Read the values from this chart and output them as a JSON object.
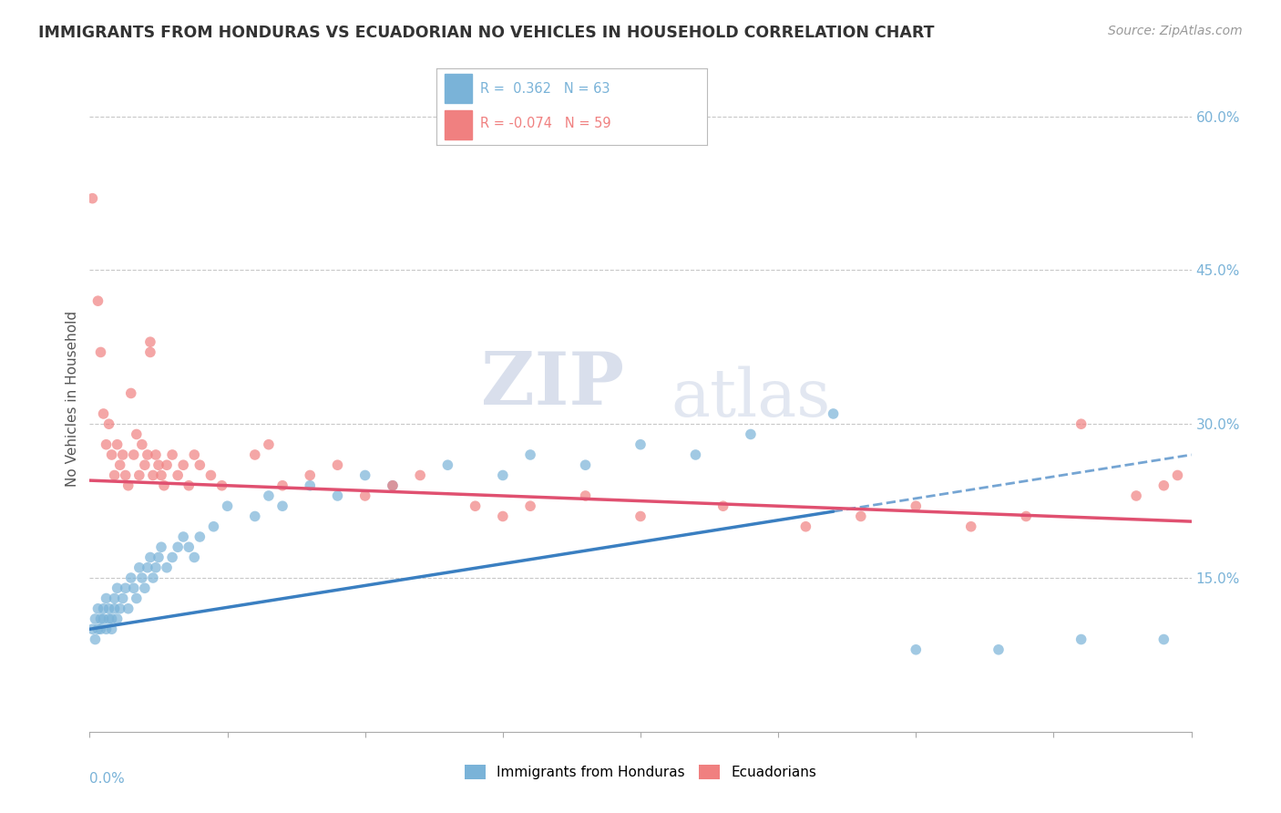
{
  "title": "IMMIGRANTS FROM HONDURAS VS ECUADORIAN NO VEHICLES IN HOUSEHOLD CORRELATION CHART",
  "source": "Source: ZipAtlas.com",
  "ylabel_label": "No Vehicles in Household",
  "x_min": 0.0,
  "x_max": 0.4,
  "y_min": 0.0,
  "y_max": 0.65,
  "y_ticks": [
    0.15,
    0.3,
    0.45,
    0.6
  ],
  "y_tick_labels": [
    "15.0%",
    "30.0%",
    "45.0%",
    "60.0%"
  ],
  "r_blue": 0.362,
  "n_blue": 63,
  "r_pink": -0.074,
  "n_pink": 59,
  "blue_color": "#7ab3d8",
  "pink_color": "#f08080",
  "trend_blue": "#3a7fc1",
  "trend_pink": "#e05070",
  "blue_label": "Immigrants from Honduras",
  "pink_label": "Ecuadorians",
  "watermark_zip": "ZIP",
  "watermark_atlas": "atlas",
  "background_color": "#ffffff",
  "grid_color": "#c8c8c8",
  "title_color": "#333333",
  "blue_scatter": [
    [
      0.001,
      0.1
    ],
    [
      0.002,
      0.11
    ],
    [
      0.002,
      0.09
    ],
    [
      0.003,
      0.1
    ],
    [
      0.003,
      0.12
    ],
    [
      0.004,
      0.11
    ],
    [
      0.004,
      0.1
    ],
    [
      0.005,
      0.11
    ],
    [
      0.005,
      0.12
    ],
    [
      0.006,
      0.1
    ],
    [
      0.006,
      0.13
    ],
    [
      0.007,
      0.11
    ],
    [
      0.007,
      0.12
    ],
    [
      0.008,
      0.1
    ],
    [
      0.008,
      0.11
    ],
    [
      0.009,
      0.12
    ],
    [
      0.009,
      0.13
    ],
    [
      0.01,
      0.11
    ],
    [
      0.01,
      0.14
    ],
    [
      0.011,
      0.12
    ],
    [
      0.012,
      0.13
    ],
    [
      0.013,
      0.14
    ],
    [
      0.014,
      0.12
    ],
    [
      0.015,
      0.15
    ],
    [
      0.016,
      0.14
    ],
    [
      0.017,
      0.13
    ],
    [
      0.018,
      0.16
    ],
    [
      0.019,
      0.15
    ],
    [
      0.02,
      0.14
    ],
    [
      0.021,
      0.16
    ],
    [
      0.022,
      0.17
    ],
    [
      0.023,
      0.15
    ],
    [
      0.024,
      0.16
    ],
    [
      0.025,
      0.17
    ],
    [
      0.026,
      0.18
    ],
    [
      0.028,
      0.16
    ],
    [
      0.03,
      0.17
    ],
    [
      0.032,
      0.18
    ],
    [
      0.034,
      0.19
    ],
    [
      0.036,
      0.18
    ],
    [
      0.038,
      0.17
    ],
    [
      0.04,
      0.19
    ],
    [
      0.045,
      0.2
    ],
    [
      0.05,
      0.22
    ],
    [
      0.06,
      0.21
    ],
    [
      0.065,
      0.23
    ],
    [
      0.07,
      0.22
    ],
    [
      0.08,
      0.24
    ],
    [
      0.09,
      0.23
    ],
    [
      0.1,
      0.25
    ],
    [
      0.11,
      0.24
    ],
    [
      0.13,
      0.26
    ],
    [
      0.15,
      0.25
    ],
    [
      0.16,
      0.27
    ],
    [
      0.18,
      0.26
    ],
    [
      0.2,
      0.28
    ],
    [
      0.22,
      0.27
    ],
    [
      0.24,
      0.29
    ],
    [
      0.27,
      0.31
    ],
    [
      0.3,
      0.08
    ],
    [
      0.33,
      0.08
    ],
    [
      0.36,
      0.09
    ],
    [
      0.39,
      0.09
    ]
  ],
  "pink_scatter": [
    [
      0.001,
      0.52
    ],
    [
      0.003,
      0.42
    ],
    [
      0.004,
      0.37
    ],
    [
      0.005,
      0.31
    ],
    [
      0.006,
      0.28
    ],
    [
      0.007,
      0.3
    ],
    [
      0.008,
      0.27
    ],
    [
      0.009,
      0.25
    ],
    [
      0.01,
      0.28
    ],
    [
      0.011,
      0.26
    ],
    [
      0.012,
      0.27
    ],
    [
      0.013,
      0.25
    ],
    [
      0.014,
      0.24
    ],
    [
      0.015,
      0.33
    ],
    [
      0.016,
      0.27
    ],
    [
      0.017,
      0.29
    ],
    [
      0.018,
      0.25
    ],
    [
      0.019,
      0.28
    ],
    [
      0.02,
      0.26
    ],
    [
      0.021,
      0.27
    ],
    [
      0.022,
      0.37
    ],
    [
      0.022,
      0.38
    ],
    [
      0.023,
      0.25
    ],
    [
      0.024,
      0.27
    ],
    [
      0.025,
      0.26
    ],
    [
      0.026,
      0.25
    ],
    [
      0.027,
      0.24
    ],
    [
      0.028,
      0.26
    ],
    [
      0.03,
      0.27
    ],
    [
      0.032,
      0.25
    ],
    [
      0.034,
      0.26
    ],
    [
      0.036,
      0.24
    ],
    [
      0.038,
      0.27
    ],
    [
      0.04,
      0.26
    ],
    [
      0.044,
      0.25
    ],
    [
      0.048,
      0.24
    ],
    [
      0.06,
      0.27
    ],
    [
      0.065,
      0.28
    ],
    [
      0.07,
      0.24
    ],
    [
      0.08,
      0.25
    ],
    [
      0.09,
      0.26
    ],
    [
      0.1,
      0.23
    ],
    [
      0.11,
      0.24
    ],
    [
      0.12,
      0.25
    ],
    [
      0.14,
      0.22
    ],
    [
      0.15,
      0.21
    ],
    [
      0.16,
      0.22
    ],
    [
      0.18,
      0.23
    ],
    [
      0.2,
      0.21
    ],
    [
      0.23,
      0.22
    ],
    [
      0.26,
      0.2
    ],
    [
      0.28,
      0.21
    ],
    [
      0.3,
      0.22
    ],
    [
      0.32,
      0.2
    ],
    [
      0.34,
      0.21
    ],
    [
      0.36,
      0.3
    ],
    [
      0.38,
      0.23
    ],
    [
      0.39,
      0.24
    ],
    [
      0.395,
      0.25
    ]
  ]
}
